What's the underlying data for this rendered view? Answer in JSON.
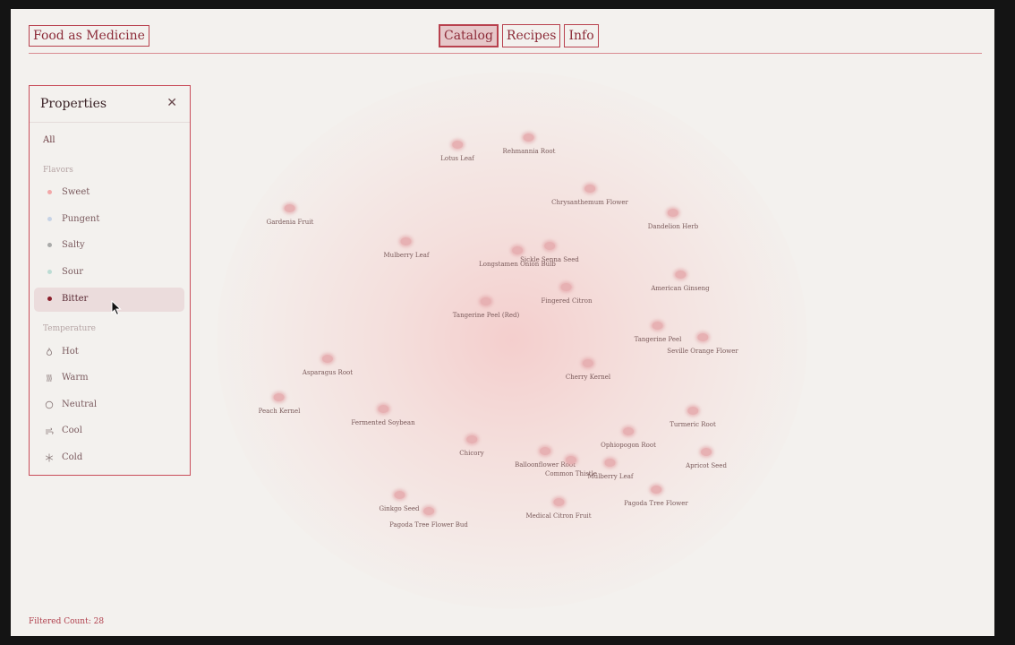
{
  "header": {
    "logo": "Food as Medicine",
    "tabs": [
      {
        "label": "Catalog",
        "active": true
      },
      {
        "label": "Recipes",
        "active": false
      },
      {
        "label": "Info",
        "active": false
      }
    ]
  },
  "panel": {
    "title": "Properties",
    "close_icon": "close-icon",
    "all_label": "All",
    "flavors_label": "Flavors",
    "flavors": [
      {
        "label": "Sweet",
        "color": "#f2a8a8",
        "selected": false
      },
      {
        "label": "Pungent",
        "color": "#c6d3e6",
        "selected": false
      },
      {
        "label": "Salty",
        "color": "#a9aaa9",
        "selected": false
      },
      {
        "label": "Sour",
        "color": "#bcdcd4",
        "selected": false
      },
      {
        "label": "Bitter",
        "color": "#8c1f2c",
        "selected": true
      }
    ],
    "temperature_label": "Temperature",
    "temperatures": [
      {
        "label": "Hot",
        "icon": "flame-icon"
      },
      {
        "label": "Warm",
        "icon": "heat-waves-icon"
      },
      {
        "label": "Neutral",
        "icon": "circle-icon"
      },
      {
        "label": "Cool",
        "icon": "wind-icon"
      },
      {
        "label": "Cold",
        "icon": "snowflake-icon"
      }
    ]
  },
  "map_items": [
    {
      "label": "Lotus Leaf"
    },
    {
      "label": "Rehmannia Root"
    },
    {
      "label": "Chrysanthemum Flower"
    },
    {
      "label": "Gardenia Fruit"
    },
    {
      "label": "Dandelion Herb"
    },
    {
      "label": "Mulberry Leaf"
    },
    {
      "label": "Longstamen Onion Bulb"
    },
    {
      "label": "Sickle Senna Seed"
    },
    {
      "label": "American Ginseng"
    },
    {
      "label": "Fingered Citron"
    },
    {
      "label": "Tangerine Peel (Red)"
    },
    {
      "label": "Tangerine Peel"
    },
    {
      "label": "Seville Orange Flower"
    },
    {
      "label": "Asparagus Root"
    },
    {
      "label": "Cherry Kernel"
    },
    {
      "label": "Peach Kernel"
    },
    {
      "label": "Fermented Soybean"
    },
    {
      "label": "Turmeric Root"
    },
    {
      "label": "Chicory"
    },
    {
      "label": "Ophiopogon Root"
    },
    {
      "label": "Balloonflower Root"
    },
    {
      "label": "Common Thistle"
    },
    {
      "label": "Mulberry Leaf"
    },
    {
      "label": "Apricot Seed"
    },
    {
      "label": "Pagoda Tree Flower"
    },
    {
      "label": "Ginkgo Seed"
    },
    {
      "label": "Medical Citron Fruit"
    },
    {
      "label": "Pagoda Tree Flower Bud"
    }
  ],
  "footer": {
    "filtered_count": "Filtered Count: 28"
  }
}
